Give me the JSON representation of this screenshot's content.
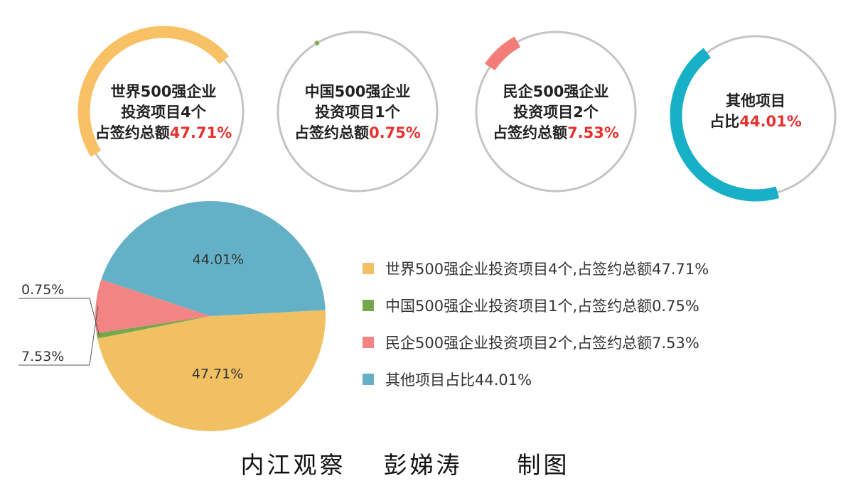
{
  "rings": [
    {
      "line1": "世界500强企业",
      "line2": "投资项目4个",
      "line3_prefix": "占签约总额",
      "pct": "47.71%",
      "value": 47.71,
      "color": "#f9c166"
    },
    {
      "line1": "中国500强企业",
      "line2": "投资项目1个",
      "line3_prefix": "占签约总额",
      "pct": "0.75%",
      "value": 0.75,
      "color": "#79b448"
    },
    {
      "line1": "民企500强企业",
      "line2": "投资项目2个",
      "line3_prefix": "占签约总额",
      "pct": "7.53%",
      "value": 7.53,
      "color": "#f27c77"
    },
    {
      "line1": "其他项目",
      "line2_prefix": "占比",
      "pct": "44.01%",
      "value": 44.01,
      "color": "#18b0c6"
    }
  ],
  "chart_data": {
    "type": "pie",
    "categories": [
      "世界500强企业投资项目4个",
      "中国500强企业投资项目1个",
      "民企500强企业投资项目2个",
      "其他项目"
    ],
    "values": [
      47.71,
      0.75,
      7.53,
      44.01
    ],
    "colors": [
      "#f1c063",
      "#74a84a",
      "#f28584",
      "#64b1c7"
    ],
    "slice_labels": [
      "47.71%",
      "0.75%",
      "7.53%",
      "44.01%"
    ],
    "legend": [
      "世界500强企业投资项目4个,占签约总额47.71%",
      "中国500强企业投资项目1个,占签约总额0.75%",
      "民企500强企业投资项目2个,占签约总额7.53%",
      "其他项目占比44.01%"
    ],
    "legend_position": "right"
  },
  "caption": {
    "part1": "内江观察",
    "part2": "彭娣涛",
    "part3": "制图"
  }
}
